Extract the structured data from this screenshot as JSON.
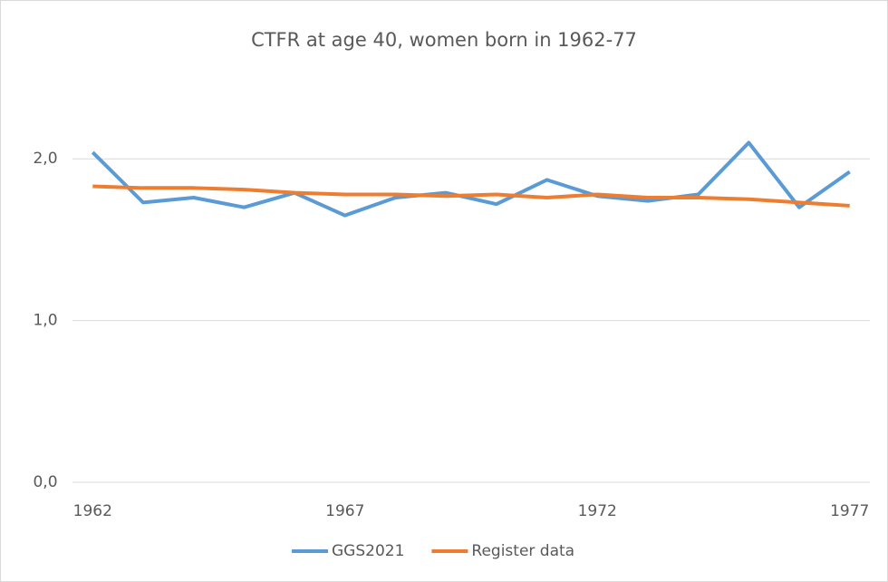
{
  "chart_data": {
    "type": "line",
    "title": "CTFR at age 40, women born in 1962-77",
    "x": [
      1962,
      1963,
      1964,
      1965,
      1966,
      1967,
      1968,
      1969,
      1970,
      1971,
      1972,
      1973,
      1974,
      1975,
      1976,
      1977
    ],
    "series": [
      {
        "name": "GGS2021",
        "color": "#5b9bd5",
        "values": [
          2.04,
          1.73,
          1.76,
          1.7,
          1.79,
          1.65,
          1.76,
          1.79,
          1.72,
          1.87,
          1.77,
          1.74,
          1.78,
          2.1,
          1.7,
          1.92
        ]
      },
      {
        "name": "Register data",
        "color": "#ed7d31",
        "values": [
          1.83,
          1.82,
          1.82,
          1.81,
          1.79,
          1.78,
          1.78,
          1.77,
          1.78,
          1.76,
          1.78,
          1.76,
          1.76,
          1.75,
          1.73,
          1.71
        ]
      }
    ],
    "xlim": [
      1961.6,
      1977.4
    ],
    "xticks": [
      1962,
      1967,
      1972,
      1977
    ],
    "ylim": [
      0,
      2.5
    ],
    "yticks": [
      {
        "value": 0,
        "label": "0,0"
      },
      {
        "value": 1,
        "label": "1,0"
      },
      {
        "value": 2,
        "label": "2,0"
      }
    ],
    "grid": true,
    "legend": "bottom"
  }
}
